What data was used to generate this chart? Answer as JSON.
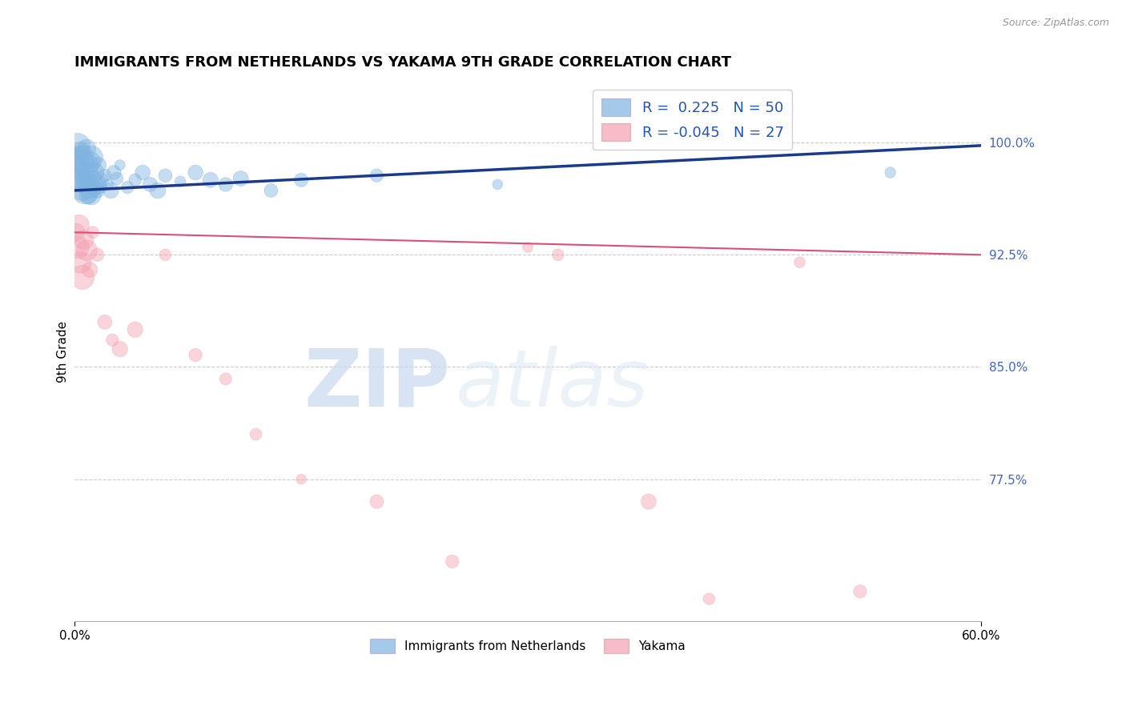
{
  "title": "IMMIGRANTS FROM NETHERLANDS VS YAKAMA 9TH GRADE CORRELATION CHART",
  "source_text": "Source: ZipAtlas.com",
  "ylabel": "9th Grade",
  "xlim": [
    0.0,
    0.6
  ],
  "ylim": [
    0.68,
    1.04
  ],
  "xticks": [
    0.0,
    0.6
  ],
  "xtick_labels": [
    "0.0%",
    "60.0%"
  ],
  "yticks": [
    0.775,
    0.85,
    0.925,
    1.0
  ],
  "ytick_labels": [
    "77.5%",
    "85.0%",
    "92.5%",
    "100.0%"
  ],
  "grid_color": "#cccccc",
  "background_color": "#ffffff",
  "blue_color": "#7fb3e0",
  "pink_color": "#f4a0b0",
  "blue_line_color": "#1a3a8c",
  "pink_line_color": "#d94f7a",
  "R_blue": 0.225,
  "N_blue": 50,
  "R_pink": -0.045,
  "N_pink": 27,
  "blue_scatter_x": [
    0.001,
    0.002,
    0.002,
    0.003,
    0.003,
    0.004,
    0.004,
    0.005,
    0.005,
    0.006,
    0.006,
    0.007,
    0.007,
    0.008,
    0.008,
    0.009,
    0.009,
    0.01,
    0.01,
    0.011,
    0.011,
    0.012,
    0.013,
    0.014,
    0.015,
    0.016,
    0.017,
    0.018,
    0.02,
    0.022,
    0.024,
    0.026,
    0.028,
    0.03,
    0.035,
    0.04,
    0.045,
    0.05,
    0.055,
    0.06,
    0.07,
    0.08,
    0.09,
    0.1,
    0.11,
    0.13,
    0.15,
    0.2,
    0.28,
    0.54
  ],
  "blue_scatter_y": [
    0.99,
    0.985,
    0.998,
    0.975,
    0.992,
    0.98,
    0.995,
    0.97,
    0.988,
    0.975,
    0.993,
    0.968,
    0.985,
    0.972,
    0.996,
    0.965,
    0.98,
    0.97,
    0.987,
    0.965,
    0.99,
    0.975,
    0.98,
    0.972,
    0.968,
    0.985,
    0.975,
    0.97,
    0.978,
    0.972,
    0.968,
    0.98,
    0.976,
    0.985,
    0.97,
    0.975,
    0.98,
    0.972,
    0.968,
    0.978,
    0.974,
    0.98,
    0.975,
    0.972,
    0.976,
    0.968,
    0.975,
    0.978,
    0.972,
    0.98
  ],
  "pink_scatter_x": [
    0.001,
    0.002,
    0.003,
    0.004,
    0.005,
    0.006,
    0.008,
    0.01,
    0.012,
    0.015,
    0.02,
    0.025,
    0.03,
    0.04,
    0.06,
    0.08,
    0.1,
    0.12,
    0.15,
    0.2,
    0.25,
    0.3,
    0.32,
    0.38,
    0.42,
    0.48,
    0.52
  ],
  "pink_scatter_y": [
    0.94,
    0.93,
    0.945,
    0.92,
    0.91,
    0.935,
    0.928,
    0.915,
    0.94,
    0.925,
    0.88,
    0.868,
    0.862,
    0.875,
    0.925,
    0.858,
    0.842,
    0.805,
    0.775,
    0.76,
    0.72,
    0.93,
    0.925,
    0.76,
    0.695,
    0.92,
    0.7
  ],
  "blue_trend_x": [
    0.0,
    0.6
  ],
  "blue_trend_y": [
    0.968,
    0.998
  ],
  "pink_trend_x": [
    0.0,
    0.6
  ],
  "pink_trend_y": [
    0.94,
    0.925
  ],
  "watermark_zip": "ZIP",
  "watermark_atlas": "atlas",
  "title_fontsize": 13,
  "label_fontsize": 11,
  "tick_fontsize": 11,
  "legend_fontsize": 13
}
